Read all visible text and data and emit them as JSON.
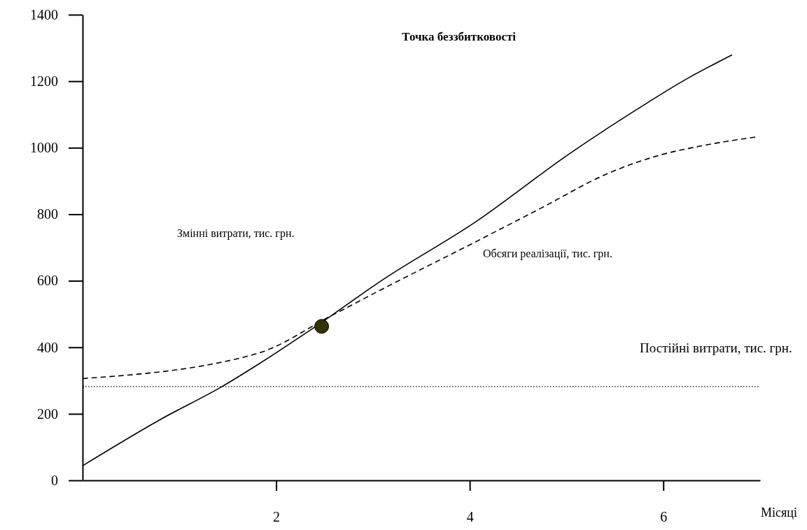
{
  "chart_data": {
    "type": "line",
    "title": "Точка беззбитковості",
    "xlabel": "Місяці",
    "xlim": [
      0,
      7
    ],
    "xticks": [
      2,
      4,
      6
    ],
    "ylim": [
      0,
      1400
    ],
    "yticks": [
      0,
      200,
      400,
      600,
      800,
      1000,
      1200,
      1400
    ],
    "series": [
      {
        "color": "#000000",
        "line_style": "solid",
        "x": [
          0,
          0.81,
          1.44,
          1.81,
          2.4,
          3.09,
          4.06,
          5.02,
          5.84,
          6.2,
          6.71
        ],
        "values": [
          44,
          184,
          282,
          348,
          461,
          601,
          777,
          980,
          1136,
          1200,
          1279
        ]
      },
      {
        "color": "#000000",
        "line_style": "dashed",
        "x": [
          0,
          1.81,
          2.57,
          3.09,
          4.06,
          4.74,
          5.43,
          5.98,
          6.4,
          6.95
        ],
        "values": [
          306,
          382,
          495,
          574,
          717,
          819,
          923,
          979,
          1006,
          1032
        ]
      },
      {
        "type": "scatter",
        "color": "#333300",
        "marker": "circle",
        "x": [
          2.47
        ],
        "values": [
          463
        ]
      }
    ],
    "ref_lines": [
      {
        "axis": "y",
        "value": 282,
        "line_style": "dotted",
        "color": "#000000"
      }
    ],
    "annotations": [
      "Змінні витрати, тис. грн.",
      "Обсяги реалізації, тис. грн.",
      "Постійні витрати, тис. грн."
    ]
  }
}
